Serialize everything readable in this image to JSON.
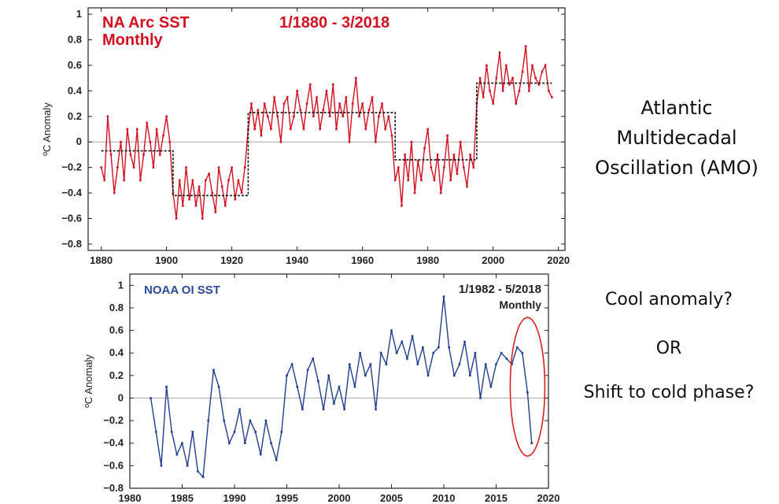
{
  "chart_data": [
    {
      "type": "line",
      "title": "NA Arc SST",
      "date_range": "1/1880 - 3/2018",
      "subtitle": "Monthly",
      "ylabel": "ºC Anomaly",
      "xlabel": "",
      "xlim": [
        1876,
        2022
      ],
      "ylim": [
        -0.85,
        1.05
      ],
      "x_ticks": [
        "1880",
        "1900",
        "1920",
        "1940",
        "1960",
        "1980",
        "2000",
        "2020"
      ],
      "y_ticks": [
        "1",
        "0.8",
        "0.6",
        "0.4",
        "0.2",
        "0",
        "−0.2",
        "−0.4",
        "−0.6",
        "−0.8"
      ],
      "grid": false,
      "color": "#d40f1f",
      "step_color": "#111111",
      "series": [
        {
          "x": [
            1880,
            1881,
            1882,
            1883,
            1884,
            1885,
            1886,
            1887,
            1888,
            1889,
            1890,
            1891,
            1892,
            1893,
            1894,
            1895,
            1896,
            1897,
            1898,
            1899,
            1900,
            1901,
            1902,
            1903,
            1904,
            1905,
            1906,
            1907,
            1908,
            1909,
            1910,
            1911,
            1912,
            1913,
            1914,
            1915,
            1916,
            1917,
            1918,
            1919,
            1920,
            1921,
            1922,
            1923,
            1924,
            1925,
            1926,
            1927,
            1928,
            1929,
            1930,
            1931,
            1932,
            1933,
            1934,
            1935,
            1936,
            1937,
            1938,
            1939,
            1940,
            1941,
            1942,
            1943,
            1944,
            1945,
            1946,
            1947,
            1948,
            1949,
            1950,
            1951,
            1952,
            1953,
            1954,
            1955,
            1956,
            1957,
            1958,
            1959,
            1960,
            1961,
            1962,
            1963,
            1964,
            1965,
            1966,
            1967,
            1968,
            1969,
            1970,
            1971,
            1972,
            1973,
            1974,
            1975,
            1976,
            1977,
            1978,
            1979,
            1980,
            1981,
            1982,
            1983,
            1984,
            1985,
            1986,
            1987,
            1988,
            1989,
            1990,
            1991,
            1992,
            1993,
            1994,
            1995,
            1996,
            1997,
            1998,
            1999,
            2000,
            2001,
            2002,
            2003,
            2004,
            2005,
            2006,
            2007,
            2008,
            2009,
            2010,
            2011,
            2012,
            2013,
            2014,
            2015,
            2016,
            2017,
            2018
          ],
          "y": [
            -0.2,
            -0.3,
            0.2,
            -0.1,
            -0.4,
            -0.2,
            0.0,
            -0.3,
            0.1,
            -0.1,
            -0.2,
            0.1,
            -0.3,
            -0.1,
            0.15,
            0.0,
            -0.2,
            0.1,
            -0.1,
            0.05,
            0.2,
            0.0,
            -0.4,
            -0.6,
            -0.3,
            -0.5,
            -0.2,
            -0.45,
            -0.3,
            -0.5,
            -0.35,
            -0.6,
            -0.3,
            -0.25,
            -0.4,
            -0.55,
            -0.2,
            -0.35,
            -0.5,
            -0.3,
            -0.2,
            -0.45,
            -0.3,
            -0.4,
            -0.2,
            0.1,
            0.3,
            0.1,
            0.25,
            0.05,
            0.3,
            0.2,
            0.1,
            0.35,
            0.2,
            0.0,
            0.3,
            0.35,
            0.1,
            0.2,
            0.4,
            0.25,
            0.1,
            0.3,
            0.45,
            0.2,
            0.35,
            0.1,
            0.25,
            0.4,
            0.2,
            0.45,
            0.1,
            0.3,
            0.2,
            0.35,
            0.0,
            0.3,
            0.5,
            0.2,
            0.3,
            0.1,
            0.25,
            0.35,
            0.0,
            0.2,
            0.3,
            0.1,
            0.2,
            0.05,
            -0.3,
            -0.2,
            -0.5,
            -0.1,
            -0.3,
            0.0,
            -0.4,
            -0.15,
            -0.3,
            -0.05,
            0.1,
            -0.2,
            -0.3,
            -0.1,
            -0.4,
            -0.2,
            0.05,
            -0.3,
            -0.1,
            -0.25,
            0.0,
            -0.2,
            -0.35,
            -0.1,
            -0.2,
            0.3,
            0.5,
            0.35,
            0.6,
            0.4,
            0.3,
            0.5,
            0.7,
            0.4,
            0.6,
            0.45,
            0.5,
            0.3,
            0.4,
            0.55,
            0.75,
            0.4,
            0.6,
            0.5,
            0.45,
            0.55,
            0.6,
            0.4,
            0.35
          ]
        }
      ],
      "step_line": [
        {
          "x": [
            1880,
            1902
          ],
          "y": -0.07
        },
        {
          "x": [
            1902,
            1925
          ],
          "y": -0.42
        },
        {
          "x": [
            1925,
            1970
          ],
          "y": 0.23
        },
        {
          "x": [
            1970,
            1995
          ],
          "y": -0.14
        },
        {
          "x": [
            1995,
            2018
          ],
          "y": 0.46
        }
      ]
    },
    {
      "type": "line",
      "title": "NOAA OI SST",
      "date_range": "1/1982 - 5/2018",
      "subtitle": "Monthly",
      "ylabel": "ºC Anomaly",
      "xlabel": "",
      "xlim": [
        1980,
        2020
      ],
      "ylim": [
        -0.8,
        1.1
      ],
      "x_ticks": [
        "1980",
        "1985",
        "1990",
        "1995",
        "2000",
        "2005",
        "2010",
        "2015",
        "2020"
      ],
      "y_ticks": [
        "1",
        "0.8",
        "0.6",
        "0.4",
        "0.2",
        "0",
        "−0.2",
        "−0.4",
        "−0.6",
        "−0.8"
      ],
      "grid": false,
      "color": "#1f3f8f",
      "annotation_color": "#e02020",
      "series": [
        {
          "x": [
            1982.0,
            1982.5,
            1983.0,
            1983.5,
            1984.0,
            1984.5,
            1985.0,
            1985.5,
            1986.0,
            1986.5,
            1987.0,
            1987.5,
            1988.0,
            1988.5,
            1989.0,
            1989.5,
            1990.0,
            1990.5,
            1991.0,
            1991.5,
            1992.0,
            1992.5,
            1993.0,
            1993.5,
            1994.0,
            1994.5,
            1995.0,
            1995.5,
            1996.0,
            1996.5,
            1997.0,
            1997.5,
            1998.0,
            1998.5,
            1999.0,
            1999.5,
            2000.0,
            2000.5,
            2001.0,
            2001.5,
            2002.0,
            2002.5,
            2003.0,
            2003.5,
            2004.0,
            2004.5,
            2005.0,
            2005.5,
            2006.0,
            2006.5,
            2007.0,
            2007.5,
            2008.0,
            2008.5,
            2009.0,
            2009.5,
            2010.0,
            2010.5,
            2011.0,
            2011.5,
            2012.0,
            2012.5,
            2013.0,
            2013.5,
            2014.0,
            2014.5,
            2015.0,
            2015.5,
            2016.0,
            2016.5,
            2017.0,
            2017.5,
            2018.0,
            2018.4
          ],
          "y": [
            0.0,
            -0.3,
            -0.6,
            0.1,
            -0.3,
            -0.5,
            -0.4,
            -0.6,
            -0.3,
            -0.65,
            -0.7,
            -0.2,
            0.25,
            0.1,
            -0.2,
            -0.4,
            -0.3,
            -0.1,
            -0.4,
            -0.2,
            -0.3,
            -0.5,
            -0.2,
            -0.4,
            -0.55,
            -0.3,
            0.2,
            0.3,
            0.1,
            -0.1,
            0.25,
            0.35,
            0.15,
            -0.1,
            0.2,
            -0.05,
            0.1,
            -0.1,
            0.3,
            0.1,
            0.4,
            0.2,
            0.3,
            -0.1,
            0.4,
            0.3,
            0.6,
            0.4,
            0.5,
            0.35,
            0.55,
            0.3,
            0.45,
            0.2,
            0.4,
            0.45,
            0.9,
            0.45,
            0.2,
            0.3,
            0.5,
            0.2,
            0.4,
            0.0,
            0.3,
            0.1,
            0.3,
            0.4,
            0.35,
            0.3,
            0.45,
            0.4,
            0.05,
            -0.4
          ]
        }
      ]
    }
  ],
  "side_text": {
    "amo_line1": "Atlantic",
    "amo_line2": "Multidecadal",
    "amo_line3": "Oscillation (AMO)",
    "q1": "Cool anomaly?",
    "q2": "OR",
    "q3": "Shift to cold phase?"
  }
}
